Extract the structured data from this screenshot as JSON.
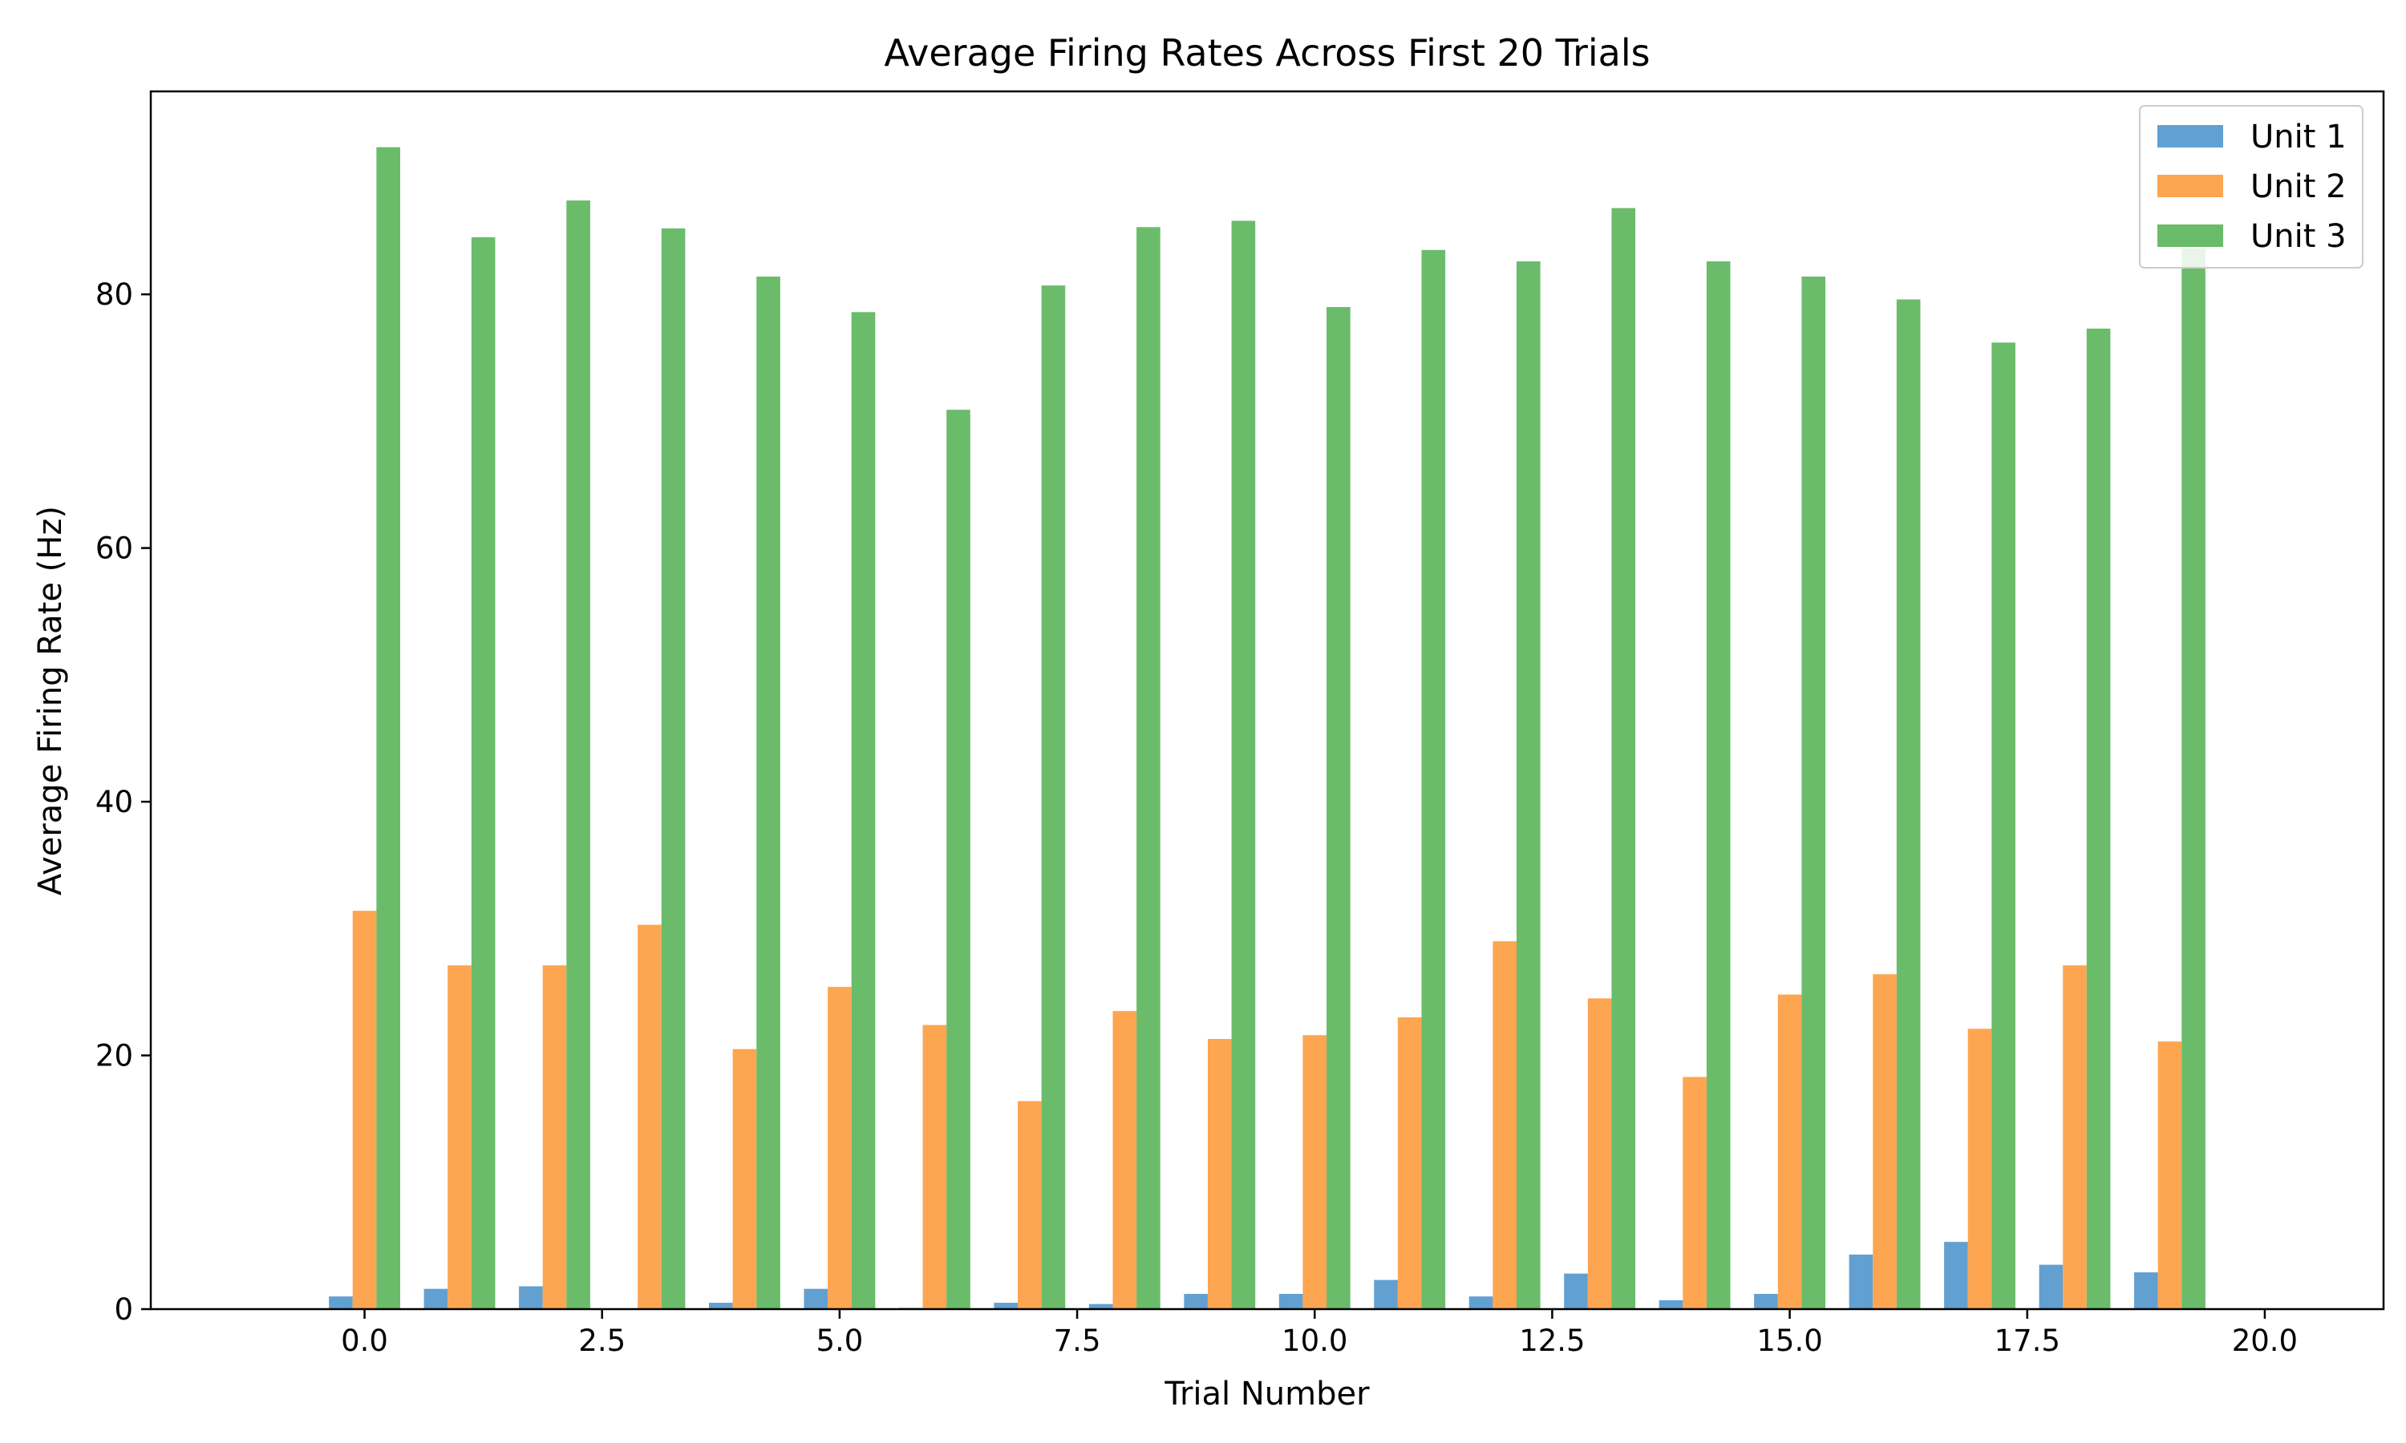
{
  "chart_data": {
    "type": "bar",
    "title": "Average Firing Rates Across First 20 Trials",
    "xlabel": "Trial Number",
    "ylabel": "Average Firing Rate (Hz)",
    "xlim": [
      -2.25,
      21.25
    ],
    "ylim": [
      0,
      96
    ],
    "xticks": [
      0,
      2.5,
      5,
      7.5,
      10,
      12.5,
      15,
      17.5,
      20
    ],
    "xtick_labels": [
      "0.0",
      "2.5",
      "5.0",
      "7.5",
      "10.0",
      "12.5",
      "15.0",
      "17.5",
      "20.0"
    ],
    "yticks": [
      0,
      20,
      40,
      60,
      80
    ],
    "ytick_labels": [
      "0",
      "20",
      "40",
      "60",
      "80"
    ],
    "bar_width": 0.25,
    "x": [
      0,
      1,
      2,
      3,
      4,
      5,
      6,
      7,
      8,
      9,
      10,
      11,
      12,
      13,
      14,
      15,
      16,
      17,
      18,
      19
    ],
    "legend_position": "top-right",
    "grid": false,
    "series": [
      {
        "name": "Unit 1",
        "color": "#62a0d1",
        "values": [
          1.0,
          1.6,
          1.8,
          0.0,
          0.5,
          1.6,
          0.1,
          0.5,
          0.4,
          1.2,
          1.2,
          2.3,
          1.0,
          2.8,
          0.7,
          1.2,
          4.3,
          5.3,
          3.5,
          2.9
        ]
      },
      {
        "name": "Unit 2",
        "color": "#fda551",
        "values": [
          31.4,
          27.1,
          27.1,
          30.3,
          20.5,
          25.4,
          22.4,
          16.4,
          23.5,
          21.3,
          21.6,
          23.0,
          29.0,
          24.5,
          18.3,
          24.8,
          26.4,
          22.1,
          27.1,
          21.1
        ]
      },
      {
        "name": "Unit 3",
        "color": "#6abc6a",
        "values": [
          91.6,
          84.5,
          87.4,
          85.2,
          81.4,
          78.6,
          70.9,
          80.7,
          85.3,
          85.8,
          79.0,
          83.5,
          82.6,
          86.8,
          82.6,
          81.4,
          79.6,
          76.2,
          77.3,
          83.6
        ]
      }
    ]
  }
}
